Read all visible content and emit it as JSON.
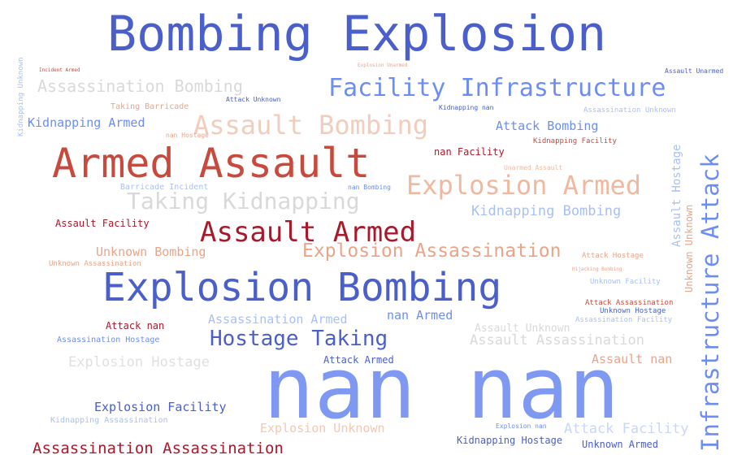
{
  "colors": {
    "blue_dark": "#4a5fc9",
    "blue_mid": "#6d8ef0",
    "blue_light": "#a9c0f6",
    "red_dark": "#a9192c",
    "red_mid": "#c84a3e",
    "peach": "#e8a58a",
    "grey": "#d9d9d9"
  },
  "words": [
    {
      "id": "w1",
      "text": "Bombing Explosion",
      "color": "blue_dark"
    },
    {
      "id": "w2",
      "text": "Facility Infrastructure",
      "color": "blue_mid"
    },
    {
      "id": "w3",
      "text": "Assassination Bombing",
      "color": "grey"
    },
    {
      "id": "w4",
      "text": "Assault Bombing",
      "color": "peach"
    },
    {
      "id": "w5",
      "text": "Kidnapping Armed",
      "color": "blue_mid"
    },
    {
      "id": "w6",
      "text": "Taking Barricade",
      "color": "peach"
    },
    {
      "id": "w7",
      "text": "Attack Unknown",
      "color": "blue_dark"
    },
    {
      "id": "w8",
      "text": "Kidnapping nan",
      "color": "blue_dark"
    },
    {
      "id": "w9",
      "text": "Assassination Unknown",
      "color": "blue_light"
    },
    {
      "id": "w10",
      "text": "Attack Bombing",
      "color": "blue_mid"
    },
    {
      "id": "w11",
      "text": "Kidnapping Facility",
      "color": "red_mid"
    },
    {
      "id": "w12",
      "text": "nan Facility",
      "color": "red_dark"
    },
    {
      "id": "w13",
      "text": "Armed Assault",
      "color": "red_mid"
    },
    {
      "id": "w14",
      "text": "Explosion Armed",
      "color": "peach"
    },
    {
      "id": "w15",
      "text": "Barricade Incident",
      "color": "blue_light"
    },
    {
      "id": "w16",
      "text": "nan Bombing",
      "color": "blue_mid"
    },
    {
      "id": "w17",
      "text": "Taking Kidnapping",
      "color": "grey"
    },
    {
      "id": "w18",
      "text": "Kidnapping Bombing",
      "color": "blue_light"
    },
    {
      "id": "w19",
      "text": "Assault Facility",
      "color": "red_dark"
    },
    {
      "id": "w20",
      "text": "Assault Armed",
      "color": "red_dark"
    },
    {
      "id": "w21",
      "text": "Unknown Bombing",
      "color": "peach"
    },
    {
      "id": "w22",
      "text": "Explosion Assassination",
      "color": "peach"
    },
    {
      "id": "w23",
      "text": "Unknown Assassination",
      "color": "peach"
    },
    {
      "id": "w24",
      "text": "Attack Hostage",
      "color": "peach"
    },
    {
      "id": "w25",
      "text": "Hijacking Bombing",
      "color": "peach"
    },
    {
      "id": "w26",
      "text": "Unknown Facility",
      "color": "blue_light"
    },
    {
      "id": "w27",
      "text": "Explosion Bombing",
      "color": "blue_dark"
    },
    {
      "id": "w28",
      "text": "Attack Assassination",
      "color": "red_mid"
    },
    {
      "id": "w29",
      "text": "Unknown Hostage",
      "color": "blue_dark"
    },
    {
      "id": "w30",
      "text": "Assassination Facility",
      "color": "blue_light"
    },
    {
      "id": "w31",
      "text": "Assassination Armed",
      "color": "blue_light"
    },
    {
      "id": "w32",
      "text": "nan Armed",
      "color": "blue_mid"
    },
    {
      "id": "w33",
      "text": "Attack nan",
      "color": "red_dark"
    },
    {
      "id": "w34",
      "text": "Assault Unknown",
      "color": "grey"
    },
    {
      "id": "w35",
      "text": "Hostage Taking",
      "color": "blue_dark"
    },
    {
      "id": "w36",
      "text": "Assassination Hostage",
      "color": "blue_mid"
    },
    {
      "id": "w37",
      "text": "Assault Assassination",
      "color": "grey"
    },
    {
      "id": "w38",
      "text": "Explosion Hostage",
      "color": "grey"
    },
    {
      "id": "w39",
      "text": "Attack Armed",
      "color": "blue_dark"
    },
    {
      "id": "w40",
      "text": "Assault nan",
      "color": "peach"
    },
    {
      "id": "w41",
      "text": "nan nan",
      "color": "blue_mid"
    },
    {
      "id": "w42",
      "text": "Explosion Facility",
      "color": "blue_dark"
    },
    {
      "id": "w43",
      "text": "Kidnapping Assassination",
      "color": "blue_light"
    },
    {
      "id": "w44",
      "text": "Explosion Unknown",
      "color": "peach"
    },
    {
      "id": "w45",
      "text": "Explosion nan",
      "color": "blue_mid"
    },
    {
      "id": "w46",
      "text": "Attack Facility",
      "color": "blue_light"
    },
    {
      "id": "w47",
      "text": "Assassination Assassination",
      "color": "red_dark"
    },
    {
      "id": "w48",
      "text": "Kidnapping Hostage",
      "color": "blue_dark"
    },
    {
      "id": "w49",
      "text": "Unknown Armed",
      "color": "blue_dark"
    },
    {
      "id": "w50",
      "text": "Unarmed Assault",
      "color": "peach"
    },
    {
      "id": "w51",
      "text": "Assault Unarmed",
      "color": "blue_dark"
    },
    {
      "id": "w52",
      "text": "Infrastructure Attack",
      "color": "blue_mid"
    },
    {
      "id": "w53",
      "text": "Assault Hostage",
      "color": "blue_light"
    },
    {
      "id": "w54",
      "text": "Unknown Unknown",
      "color": "peach"
    },
    {
      "id": "w55",
      "text": "Kidnapping Unknown",
      "color": "blue_light"
    },
    {
      "id": "w56",
      "text": "nan Hostage",
      "color": "peach"
    },
    {
      "id": "w57",
      "text": "Incident Armed",
      "color": "red_mid"
    },
    {
      "id": "w58",
      "text": "Explosion Unarmed",
      "color": "peach"
    }
  ]
}
